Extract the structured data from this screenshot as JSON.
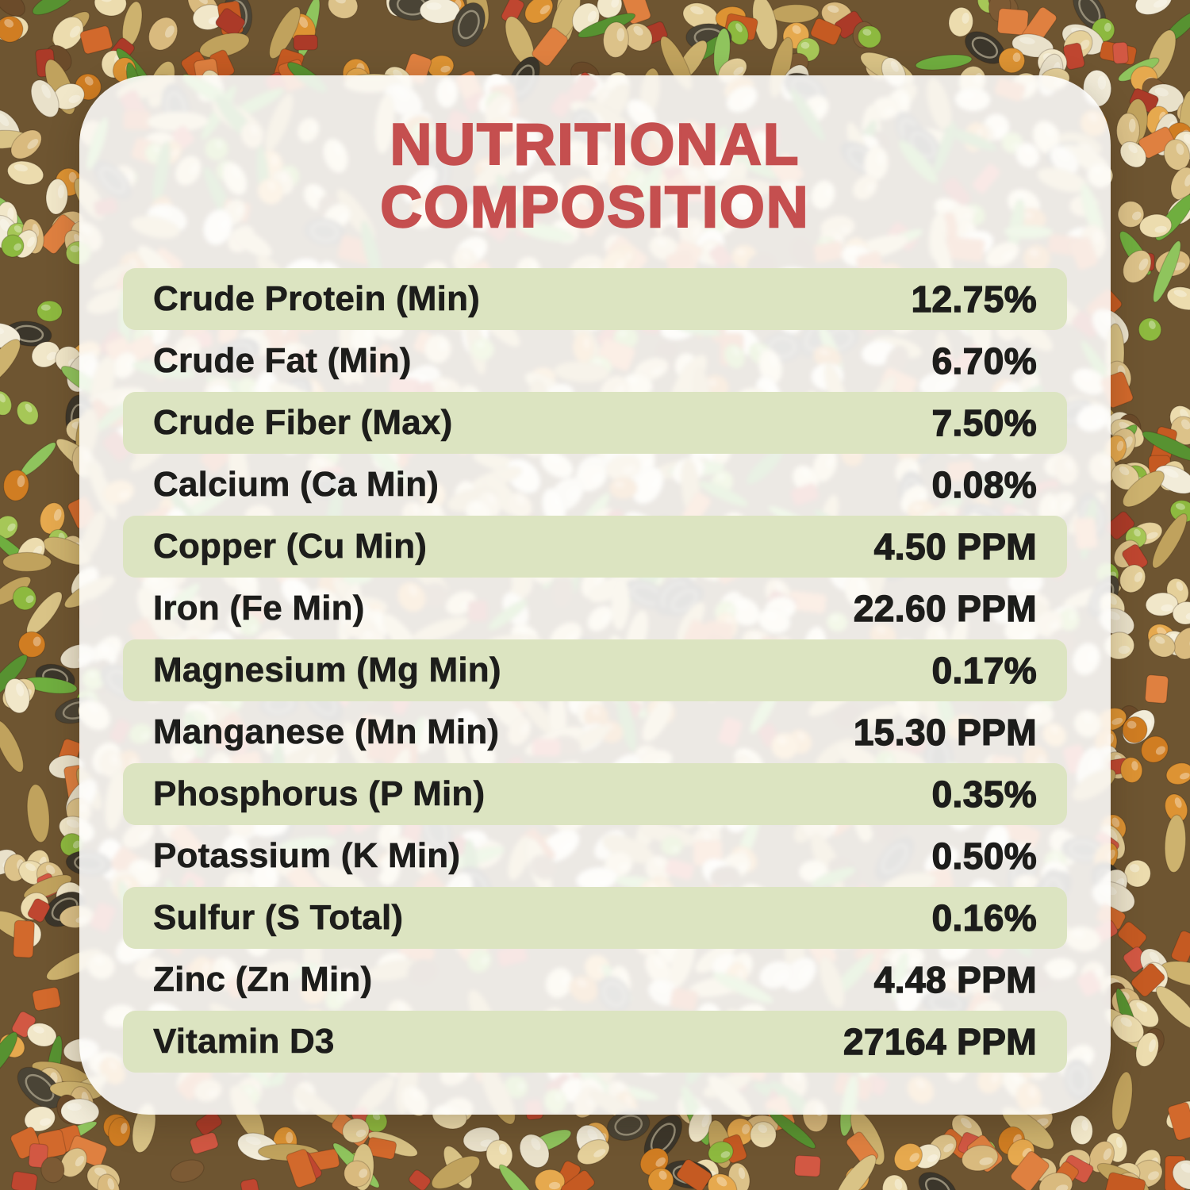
{
  "title": {
    "line1": "NUTRITIONAL",
    "line2": "COMPOSITION"
  },
  "nutrition_table": {
    "rows": [
      {
        "label": "Crude Protein (Min)",
        "value": "12.75%"
      },
      {
        "label": "Crude Fat (Min)",
        "value": "6.70%"
      },
      {
        "label": "Crude Fiber (Max)",
        "value": "7.50%"
      },
      {
        "label": "Calcium (Ca Min)",
        "value": "0.08%"
      },
      {
        "label": "Copper (Cu Min)",
        "value": "4.50 PPM"
      },
      {
        "label": "Iron (Fe Min)",
        "value": "22.60 PPM"
      },
      {
        "label": "Magnesium (Mg Min)",
        "value": "0.17%"
      },
      {
        "label": "Manganese (Mn Min)",
        "value": "15.30 PPM"
      },
      {
        "label": "Phosphorus (P Min)",
        "value": "0.35%"
      },
      {
        "label": "Potassium (K Min)",
        "value": "0.50%"
      },
      {
        "label": "Sulfur (S Total)",
        "value": "0.16%"
      },
      {
        "label": "Zinc (Zn Min)",
        "value": "4.48 PPM"
      },
      {
        "label": "Vitamin D3",
        "value": "27164 PPM"
      }
    ]
  },
  "colors": {
    "title_red": "#c54f4f",
    "row_green": "#dce4c1",
    "text_dark": "#1d1d1b",
    "card_white": "#ffffff",
    "background_base": "#6e5531"
  },
  "background": {
    "description": "bird seed mix photo border",
    "seed_palette": {
      "millet": [
        "#ecdcae",
        "#e5d09a",
        "#dcc289",
        "#f1e7c9",
        "#d9ba7e"
      ],
      "oat": [
        "#cdb26e",
        "#c0a25d",
        "#d9c386"
      ],
      "safflower": [
        "#f2ecd9",
        "#e9e1ca"
      ],
      "orange_seed": [
        "#dd9333",
        "#d07d22",
        "#e6a94e"
      ],
      "carrot": [
        "#d2692c",
        "#df8040",
        "#c55a22"
      ],
      "fruit_red": [
        "#bf4630",
        "#ab3a28",
        "#d25843"
      ],
      "herb_green": [
        "#6fae3f",
        "#8fc45d",
        "#579231"
      ],
      "pellet_green": [
        "#a6c757",
        "#8db93f"
      ],
      "sunflower_dark": [
        "#3b362b",
        "#4a4436"
      ],
      "brown_seed": [
        "#7c5a34",
        "#6b4b2a"
      ]
    }
  }
}
